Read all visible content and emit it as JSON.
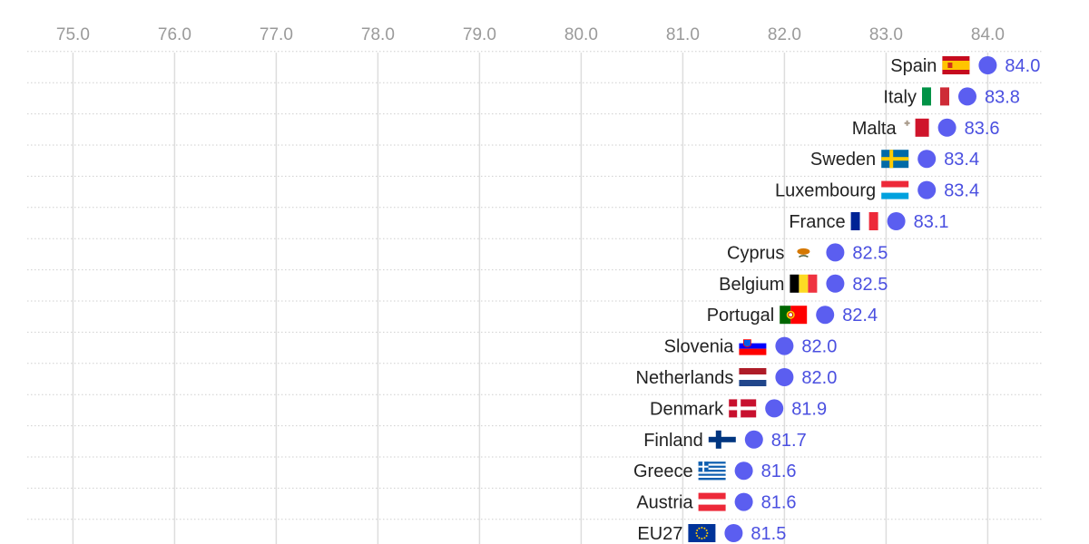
{
  "chart_data": {
    "type": "dot",
    "title": "",
    "xlabel": "",
    "ylabel": "",
    "xlim": [
      74.55,
      84.55
    ],
    "x_ticks": [
      "75.0",
      "76.0",
      "77.0",
      "78.0",
      "79.0",
      "80.0",
      "81.0",
      "82.0",
      "83.0",
      "84.0"
    ],
    "x_tick_values": [
      75,
      76,
      77,
      78,
      79,
      80,
      81,
      82,
      83,
      84
    ],
    "grid": true,
    "colors": {
      "dot": "#5b5ef0",
      "value_text": "#4a4fe0",
      "grid": "#dddddd",
      "row_line": "#cfcfcf"
    },
    "rows": [
      {
        "country": "Spain",
        "value": 84.0,
        "label": "84.0",
        "flag": "flag-spain-icon"
      },
      {
        "country": "Italy",
        "value": 83.8,
        "label": "83.8",
        "flag": "flag-italy-icon"
      },
      {
        "country": "Malta",
        "value": 83.6,
        "label": "83.6",
        "flag": "flag-malta-icon"
      },
      {
        "country": "Sweden",
        "value": 83.4,
        "label": "83.4",
        "flag": "flag-sweden-icon"
      },
      {
        "country": "Luxembourg",
        "value": 83.4,
        "label": "83.4",
        "flag": "flag-luxembourg-icon"
      },
      {
        "country": "France",
        "value": 83.1,
        "label": "83.1",
        "flag": "flag-france-icon"
      },
      {
        "country": "Cyprus",
        "value": 82.5,
        "label": "82.5",
        "flag": "flag-cyprus-icon"
      },
      {
        "country": "Belgium",
        "value": 82.5,
        "label": "82.5",
        "flag": "flag-belgium-icon"
      },
      {
        "country": "Portugal",
        "value": 82.4,
        "label": "82.4",
        "flag": "flag-portugal-icon"
      },
      {
        "country": "Slovenia",
        "value": 82.0,
        "label": "82.0",
        "flag": "flag-slovenia-icon"
      },
      {
        "country": "Netherlands",
        "value": 82.0,
        "label": "82.0",
        "flag": "flag-netherlands-icon"
      },
      {
        "country": "Denmark",
        "value": 81.9,
        "label": "81.9",
        "flag": "flag-denmark-icon"
      },
      {
        "country": "Finland",
        "value": 81.7,
        "label": "81.7",
        "flag": "flag-finland-icon"
      },
      {
        "country": "Greece",
        "value": 81.6,
        "label": "81.6",
        "flag": "flag-greece-icon"
      },
      {
        "country": "Austria",
        "value": 81.6,
        "label": "81.6",
        "flag": "flag-austria-icon"
      },
      {
        "country": "EU27",
        "value": 81.5,
        "label": "81.5",
        "flag": "flag-eu-icon"
      }
    ]
  }
}
